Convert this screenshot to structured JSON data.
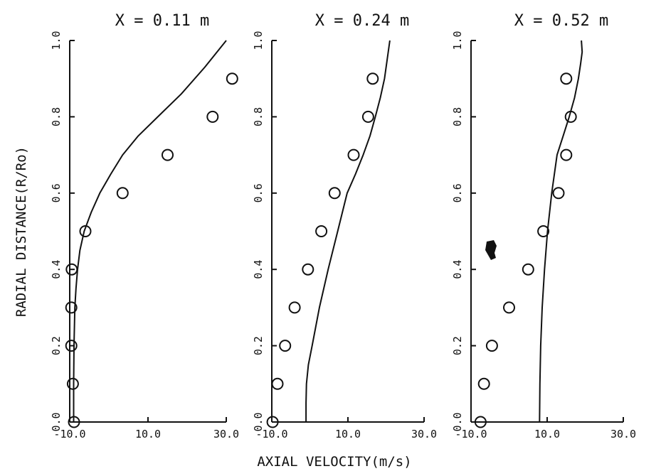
{
  "figure": {
    "xlabel": "AXIAL VELOCITY(m/s)",
    "ylabel": "RADIAL DISTANCE(R/Ro)"
  },
  "chart_data": [
    {
      "type": "scatter",
      "title": "X = 0.11 m",
      "xlim": [
        -10,
        30
      ],
      "ylim": [
        0,
        1
      ],
      "xticks": [
        "-10.0",
        "10.0",
        "30.0"
      ],
      "yticks": [
        "0.0",
        "0.2",
        "0.4",
        "0.6",
        "0.8",
        "1.0"
      ],
      "series": [
        {
          "kind": "line",
          "x": [
            -9.0,
            -9.0,
            -8.9,
            -8.7,
            -8.4,
            -8.0,
            -7.4,
            -6.3,
            -4.5,
            -2.3,
            0.5,
            3.5,
            7.5,
            12.5,
            18.5,
            24.5,
            30.5
          ],
          "y": [
            0.0,
            0.1,
            0.2,
            0.3,
            0.35,
            0.4,
            0.45,
            0.5,
            0.55,
            0.6,
            0.65,
            0.7,
            0.75,
            0.8,
            0.86,
            0.93,
            1.0
          ]
        },
        {
          "kind": "markers",
          "x": [
            -8.9,
            -9.2,
            -9.6,
            -9.6,
            -9.5,
            -6.0,
            3.5,
            15.0,
            26.5,
            31.5
          ],
          "y": [
            0.0,
            0.1,
            0.2,
            0.3,
            0.4,
            0.5,
            0.6,
            0.7,
            0.8,
            0.9
          ]
        }
      ]
    },
    {
      "type": "scatter",
      "title": "X = 0.24 m",
      "xlim": [
        -10,
        30
      ],
      "ylim": [
        0,
        1
      ],
      "xticks": [
        "-10.0",
        "10.0",
        "30.0"
      ],
      "yticks": [
        "0.0",
        "0.2",
        "0.4",
        "0.6",
        "0.8",
        "1.0"
      ],
      "series": [
        {
          "kind": "line",
          "x": [
            -1.0,
            -1.0,
            -0.9,
            -0.4,
            0.6,
            2.5,
            4.8,
            7.3,
            9.8,
            12.0,
            14.0,
            15.8,
            17.2,
            18.5,
            19.6,
            21.0
          ],
          "y": [
            0.0,
            0.05,
            0.1,
            0.15,
            0.2,
            0.3,
            0.4,
            0.5,
            0.6,
            0.65,
            0.7,
            0.75,
            0.8,
            0.85,
            0.9,
            1.0
          ]
        },
        {
          "kind": "markers",
          "x": [
            -9.8,
            -8.5,
            -6.5,
            -4.0,
            -0.5,
            3.0,
            6.5,
            11.5,
            15.3,
            16.5
          ],
          "y": [
            0.0,
            0.1,
            0.2,
            0.3,
            0.4,
            0.5,
            0.6,
            0.7,
            0.8,
            0.9
          ]
        }
      ]
    },
    {
      "type": "scatter",
      "title": "X = 0.52 m",
      "xlim": [
        -10,
        30
      ],
      "ylim": [
        0,
        1
      ],
      "xticks": [
        "-10.0",
        "10.0",
        "30.0"
      ],
      "yticks": [
        "0.0",
        "0.2",
        "0.4",
        "0.6",
        "0.8",
        "1.0"
      ],
      "series": [
        {
          "kind": "line",
          "x": [
            8.0,
            8.1,
            8.3,
            8.7,
            9.3,
            10.1,
            11.2,
            12.6,
            14.2,
            15.8,
            17.2,
            18.2,
            18.8,
            19.2,
            19.0
          ],
          "y": [
            0.0,
            0.1,
            0.2,
            0.3,
            0.4,
            0.5,
            0.6,
            0.7,
            0.75,
            0.8,
            0.85,
            0.9,
            0.94,
            0.97,
            1.0
          ]
        },
        {
          "kind": "markers",
          "x": [
            -7.5,
            -6.6,
            -4.5,
            0.0,
            5.0,
            9.0,
            13.0,
            15.0,
            16.2,
            15.0
          ],
          "y": [
            0.0,
            0.1,
            0.2,
            0.3,
            0.4,
            0.5,
            0.6,
            0.7,
            0.8,
            0.9
          ]
        }
      ]
    }
  ]
}
